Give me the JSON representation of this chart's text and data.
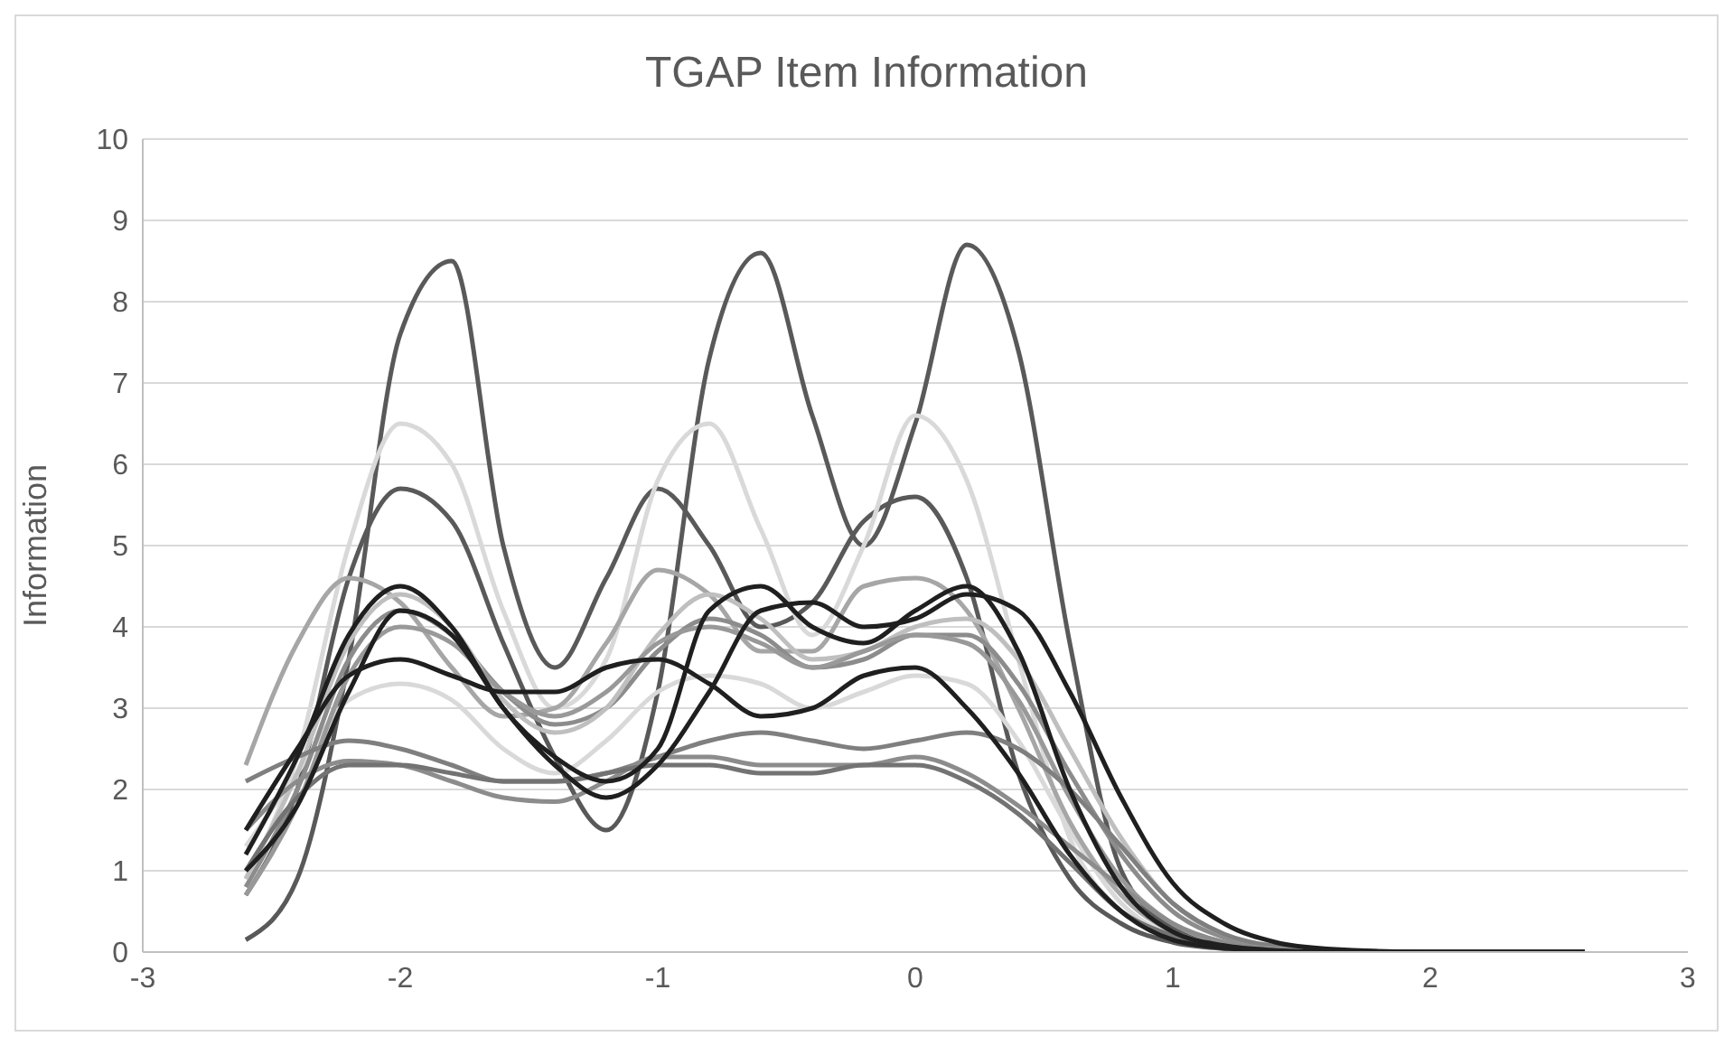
{
  "chart_data": {
    "type": "line",
    "title": "TGAP Item Information",
    "ylabel": "Information",
    "x": [
      -2.6,
      -2.4,
      -2.2,
      -2.0,
      -1.8,
      -1.6,
      -1.4,
      -1.2,
      -1.0,
      -0.8,
      -0.6,
      -0.4,
      -0.2,
      0,
      0.2,
      0.4,
      0.6,
      0.8,
      1.0,
      1.2,
      1.4,
      1.6,
      2.0,
      2.6
    ],
    "xlim": [
      -3,
      3
    ],
    "xticks": [
      -3,
      -2,
      -1,
      0,
      1,
      2,
      3
    ],
    "ylim": [
      0,
      10
    ],
    "yticks": [
      0,
      1,
      2,
      3,
      4,
      5,
      6,
      7,
      8,
      9,
      10
    ],
    "grid": "y",
    "series": [
      {
        "color": "#595959",
        "values": [
          0.15,
          0.9,
          3.6,
          7.6,
          8.5,
          5.0,
          3.5,
          4.6,
          5.7,
          5.0,
          4.0,
          4.3,
          5.3,
          5.6,
          4.6,
          2.2,
          0.9,
          0.35,
          0.12,
          0.04,
          0.01,
          0,
          0,
          0
        ]
      },
      {
        "color": "#595959",
        "values": [
          0.7,
          2.0,
          4.6,
          5.7,
          5.3,
          3.8,
          2.4,
          1.5,
          3.2,
          7.3,
          8.6,
          6.6,
          5.0,
          6.5,
          8.7,
          7.4,
          3.8,
          1.0,
          0.3,
          0.08,
          0.02,
          0,
          0,
          0
        ]
      },
      {
        "color": "#d9d9d9",
        "values": [
          0.9,
          2.4,
          5.0,
          6.5,
          6.0,
          4.2,
          3.0,
          3.6,
          5.8,
          6.5,
          5.2,
          3.9,
          5.0,
          6.6,
          5.8,
          3.6,
          1.4,
          0.5,
          0.18,
          0.06,
          0.02,
          0,
          0,
          0
        ]
      },
      {
        "color": "#d9d9d9",
        "values": [
          1.3,
          2.2,
          3.1,
          3.3,
          3.1,
          2.5,
          2.2,
          2.6,
          3.2,
          3.4,
          3.3,
          3.0,
          3.2,
          3.4,
          3.3,
          2.6,
          1.5,
          0.6,
          0.2,
          0.07,
          0.02,
          0,
          0,
          0
        ]
      },
      {
        "color": "#a6a6a6",
        "values": [
          2.3,
          3.8,
          4.6,
          4.3,
          3.5,
          2.9,
          3.0,
          3.8,
          4.7,
          4.4,
          3.7,
          3.7,
          4.5,
          4.6,
          4.2,
          3.0,
          1.6,
          0.7,
          0.25,
          0.08,
          0.02,
          0,
          0,
          0
        ]
      },
      {
        "color": "#8c8c8c",
        "values": [
          0.8,
          2.0,
          3.6,
          4.2,
          3.9,
          3.2,
          2.8,
          3.0,
          3.7,
          4.1,
          3.9,
          3.5,
          3.6,
          3.9,
          3.9,
          3.3,
          2.2,
          1.2,
          0.5,
          0.18,
          0.06,
          0.02,
          0,
          0
        ]
      },
      {
        "color": "#bfbfbf",
        "values": [
          0.9,
          2.2,
          3.8,
          4.4,
          4.0,
          3.1,
          2.7,
          3.0,
          3.9,
          4.4,
          4.1,
          3.6,
          3.7,
          4.0,
          4.1,
          3.6,
          2.5,
          1.4,
          0.6,
          0.22,
          0.07,
          0.02,
          0,
          0
        ]
      },
      {
        "color": "#999999",
        "values": [
          0.7,
          1.8,
          3.4,
          4.0,
          3.8,
          3.2,
          2.9,
          3.2,
          3.8,
          4.0,
          3.8,
          3.5,
          3.7,
          3.9,
          3.8,
          3.1,
          1.9,
          0.9,
          0.35,
          0.12,
          0.04,
          0.01,
          0,
          0
        ]
      },
      {
        "color": "#7f7f7f",
        "values": [
          2.1,
          2.4,
          2.6,
          2.5,
          2.3,
          2.1,
          2.1,
          2.2,
          2.4,
          2.6,
          2.7,
          2.6,
          2.5,
          2.6,
          2.7,
          2.5,
          2.0,
          1.3,
          0.6,
          0.22,
          0.07,
          0.02,
          0,
          0
        ]
      },
      {
        "color": "#8c8c8c",
        "values": [
          1.5,
          2.1,
          2.35,
          2.3,
          2.1,
          1.9,
          1.85,
          2.1,
          2.4,
          2.4,
          2.3,
          2.3,
          2.3,
          2.4,
          2.2,
          1.8,
          1.3,
          0.8,
          0.35,
          0.12,
          0.04,
          0.01,
          0,
          0
        ]
      },
      {
        "color": "#737373",
        "values": [
          1.0,
          1.9,
          2.3,
          2.3,
          2.2,
          2.1,
          2.1,
          2.2,
          2.3,
          2.3,
          2.2,
          2.2,
          2.3,
          2.3,
          2.1,
          1.7,
          1.1,
          0.5,
          0.2,
          0.07,
          0.02,
          0,
          0,
          0
        ]
      },
      {
        "color": "#1f1f1f",
        "values": [
          1.5,
          2.5,
          3.4,
          3.6,
          3.4,
          3.2,
          3.2,
          3.5,
          3.6,
          3.3,
          2.9,
          3.0,
          3.4,
          3.5,
          3.0,
          2.2,
          1.2,
          0.5,
          0.15,
          0.05,
          0.01,
          0,
          0,
          0
        ]
      },
      {
        "color": "#1f1f1f",
        "values": [
          1.2,
          2.4,
          3.9,
          4.5,
          4.0,
          3.0,
          2.4,
          2.1,
          2.5,
          4.2,
          4.5,
          4.0,
          3.8,
          4.2,
          4.5,
          3.7,
          2.0,
          0.8,
          0.25,
          0.08,
          0.02,
          0,
          0,
          0
        ]
      },
      {
        "color": "#1f1f1f",
        "values": [
          1.0,
          1.8,
          3.2,
          4.2,
          3.9,
          3.0,
          2.3,
          1.9,
          2.3,
          3.2,
          4.2,
          4.3,
          4.0,
          4.1,
          4.4,
          4.2,
          3.2,
          1.9,
          0.85,
          0.35,
          0.12,
          0.04,
          0,
          0
        ]
      }
    ]
  }
}
